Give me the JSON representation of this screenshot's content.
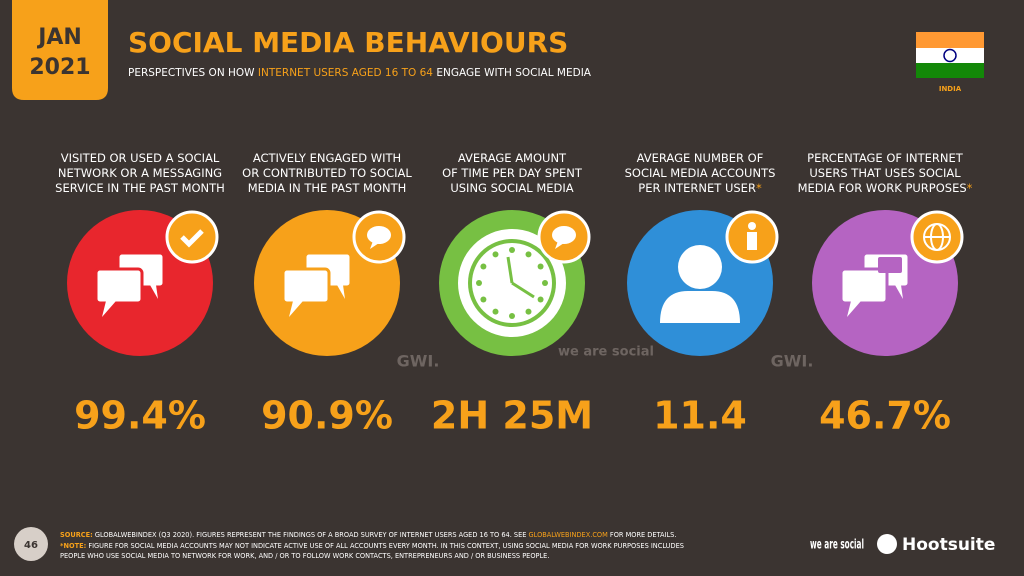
{
  "header": {
    "date_badge": [
      "JAN",
      "2021"
    ],
    "title": "SOCIAL MEDIA BEHAVIOURS",
    "subtitle_parts": [
      "PERSPECTIVES ON HOW ",
      "INTERNET USERS AGED 16 TO 64",
      " ENGAGE WITH SOCIAL MEDIA"
    ],
    "country": "INDIA"
  },
  "stats": [
    {
      "label_lines": [
        "VISITED OR USED A SOCIAL",
        "NETWORK OR A MESSAGING",
        "SERVICE IN THE PAST MONTH"
      ],
      "value": "99.4%"
    },
    {
      "label_lines": [
        "ACTIVELY ENGAGED WITH",
        "OR CONTRIBUTED TO SOCIAL",
        "MEDIA IN THE PAST MONTH"
      ],
      "value": "90.9%"
    },
    {
      "label_lines": [
        "AVERAGE AMOUNT",
        "OF TIME PER DAY SPENT",
        "USING SOCIAL MEDIA"
      ],
      "value": "2H 25M"
    },
    {
      "label_lines": [
        "AVERAGE NUMBER OF",
        "SOCIAL MEDIA ACCOUNTS",
        "PER INTERNET USER"
      ],
      "note_mark": "*",
      "value": "11.4"
    },
    {
      "label_lines": [
        "PERCENTAGE OF INTERNET",
        "USERS THAT USES SOCIAL",
        "MEDIA FOR WORK PURPOSES"
      ],
      "note_mark": "*",
      "value": "46.7%"
    }
  ],
  "watermarks": [
    "GWI.",
    "we are social",
    "GWI."
  ],
  "footer": {
    "page": "46",
    "source_label": "SOURCE:",
    "source_parts": [
      " GLOBALWEBINDEX (Q3 2020). FIGURES REPRESENT THE FINDINGS OF A BROAD SURVEY OF INTERNET USERS AGED 16 TO 64. SEE ",
      "GLOBALWEBINDEX.COM",
      " FOR MORE DETAILS."
    ],
    "note_label": "*NOTE:",
    "note_lines": [
      " FIGURE FOR SOCIAL MEDIA ACCOUNTS MAY NOT INDICATE ACTIVE USE OF ALL ACCOUNTS EVERY MONTH. IN THIS CONTEXT, USING SOCIAL MEDIA FOR WORK PURPOSES INCLUDES",
      "PEOPLE WHO USE SOCIAL MEDIA TO NETWORK FOR WORK, AND / OR TO FOLLOW WORK CONTACTS, ENTREPRENEURS AND / OR BUSINESS PEOPLE."
    ],
    "logos": [
      "we are social",
      "Hootsuite"
    ]
  }
}
